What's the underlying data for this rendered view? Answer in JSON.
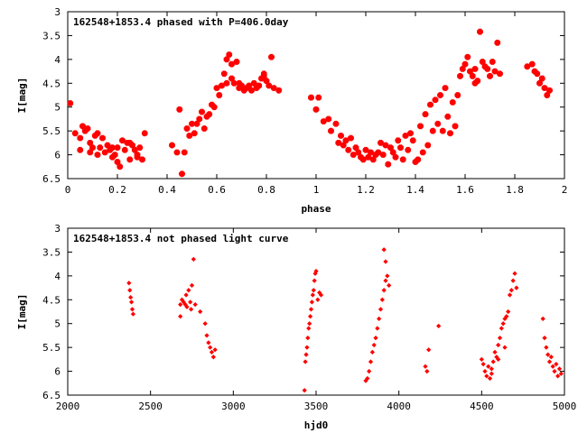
{
  "chart_data": [
    {
      "type": "scatter",
      "title": "162548+1853.4 phased with P=406.0day",
      "xlabel": "phase",
      "ylabel": "I[mag]",
      "xlim": [
        0,
        2
      ],
      "ylim": [
        6.5,
        3
      ],
      "y_inverted": true,
      "xticks": [
        "0",
        "0.2",
        "0.4",
        "0.6",
        "0.8",
        "1",
        "1.2",
        "1.4",
        "1.6",
        "1.8",
        "2"
      ],
      "yticks": [
        "3",
        "3.5",
        "4",
        "4.5",
        "5",
        "5.5",
        "6",
        "6.5"
      ],
      "marker_color": "#ff0000",
      "marker": "star",
      "series": [
        {
          "x": [
            0.01,
            0.03,
            0.05,
            0.06,
            0.07,
            0.08,
            0.09,
            0.1,
            0.11,
            0.12,
            0.13,
            0.14,
            0.15,
            0.16,
            0.17,
            0.18,
            0.19,
            0.2,
            0.21,
            0.22,
            0.23,
            0.24,
            0.25,
            0.26,
            0.27,
            0.28,
            0.29,
            0.3,
            0.31,
            0.05,
            0.12,
            0.2,
            0.25,
            0.09,
            0.18,
            0.28,
            0.42,
            0.44,
            0.45,
            0.46,
            0.47,
            0.48,
            0.49,
            0.5,
            0.51,
            0.52,
            0.53,
            0.54,
            0.55,
            0.56,
            0.57,
            0.58,
            0.59,
            0.6,
            0.61,
            0.62,
            0.63,
            0.64,
            0.65,
            0.66,
            0.67,
            0.68,
            0.69,
            0.7,
            0.71,
            0.72,
            0.73,
            0.74,
            0.75,
            0.76,
            0.77,
            0.78,
            0.79,
            0.8,
            0.81,
            0.82,
            0.83,
            0.85,
            0.64,
            0.66,
            0.69,
            0.79,
            0.98,
            1.0,
            1.01,
            1.03,
            1.05,
            1.06,
            1.08,
            1.09,
            1.1,
            1.11,
            1.12,
            1.13,
            1.14,
            1.15,
            1.16,
            1.17,
            1.18,
            1.19,
            1.2,
            1.21,
            1.22,
            1.23,
            1.24,
            1.25,
            1.26,
            1.27,
            1.28,
            1.29,
            1.3,
            1.31,
            1.32,
            1.33,
            1.34,
            1.35,
            1.36,
            1.37,
            1.38,
            1.39,
            1.4,
            1.41,
            1.42,
            1.43,
            1.44,
            1.45,
            1.46,
            1.47,
            1.48,
            1.49,
            1.5,
            1.51,
            1.52,
            1.53,
            1.54,
            1.55,
            1.56,
            1.57,
            1.58,
            1.59,
            1.6,
            1.61,
            1.62,
            1.63,
            1.64,
            1.65,
            1.66,
            1.67,
            1.68,
            1.69,
            1.7,
            1.71,
            1.72,
            1.73,
            1.74,
            1.64,
            1.85,
            1.87,
            1.88,
            1.89,
            1.9,
            1.91,
            1.92,
            1.93,
            1.94
          ],
          "y": [
            4.92,
            5.55,
            5.9,
            5.4,
            5.5,
            5.45,
            5.75,
            5.85,
            5.6,
            5.55,
            5.85,
            5.65,
            5.95,
            5.8,
            5.9,
            6.05,
            6.0,
            5.85,
            6.25,
            5.7,
            5.9,
            5.75,
            6.1,
            5.8,
            5.9,
            6.0,
            5.85,
            6.1,
            5.55,
            5.65,
            6.0,
            6.15,
            5.75,
            5.95,
            5.85,
            6.05,
            5.8,
            5.95,
            5.05,
            6.4,
            5.95,
            5.45,
            5.6,
            5.35,
            5.55,
            5.35,
            5.25,
            5.1,
            5.45,
            5.2,
            5.15,
            4.95,
            5.0,
            4.6,
            4.75,
            4.55,
            4.3,
            4.0,
            3.9,
            4.1,
            4.5,
            4.05,
            4.6,
            4.55,
            4.65,
            4.6,
            4.55,
            4.65,
            4.5,
            4.6,
            4.55,
            4.4,
            4.3,
            4.45,
            4.55,
            3.95,
            4.6,
            4.65,
            4.5,
            4.4,
            4.5,
            4.35,
            4.8,
            5.05,
            4.8,
            5.3,
            5.25,
            5.5,
            5.35,
            5.75,
            5.6,
            5.8,
            5.7,
            5.9,
            5.65,
            6.0,
            5.85,
            5.95,
            6.05,
            6.1,
            5.9,
            6.05,
            5.95,
            6.1,
            6.0,
            5.95,
            5.75,
            6.0,
            5.8,
            6.2,
            5.85,
            5.95,
            6.05,
            5.7,
            5.85,
            6.1,
            5.6,
            5.9,
            5.55,
            5.7,
            6.15,
            6.1,
            5.4,
            5.95,
            5.15,
            5.8,
            4.95,
            5.5,
            4.85,
            5.35,
            4.75,
            5.5,
            4.6,
            5.2,
            5.55,
            4.9,
            5.4,
            4.75,
            4.35,
            4.2,
            4.1,
            3.95,
            4.25,
            4.35,
            4.5,
            4.45,
            3.42,
            4.05,
            4.15,
            4.2,
            4.35,
            4.05,
            4.25,
            3.65,
            4.3,
            4.2,
            4.15,
            4.1,
            4.25,
            4.3,
            4.5,
            4.4,
            4.6,
            4.75,
            4.65
          ]
        }
      ]
    },
    {
      "type": "scatter",
      "title": "162548+1853.4 not phased light curve",
      "xlabel": "hjd0",
      "ylabel": "I[mag]",
      "xlim": [
        2000,
        5000
      ],
      "ylim": [
        6.5,
        3
      ],
      "y_inverted": true,
      "xticks": [
        "2000",
        "2500",
        "3000",
        "3500",
        "4000",
        "4500",
        "5000"
      ],
      "yticks": [
        "3",
        "3.5",
        "4",
        "4.5",
        "5",
        "5.5",
        "6",
        "6.5"
      ],
      "marker_color": "#ff0000",
      "marker": "diamond",
      "series": [
        {
          "x": [
            2370,
            2375,
            2380,
            2385,
            2390,
            2395,
            2680,
            2690,
            2700,
            2710,
            2715,
            2720,
            2730,
            2740,
            2745,
            2750,
            2760,
            2770,
            2680,
            2800,
            2830,
            2840,
            2850,
            2860,
            2870,
            2880,
            2890,
            3430,
            3435,
            3440,
            3445,
            3450,
            3455,
            3460,
            3465,
            3470,
            3475,
            3480,
            3485,
            3490,
            3495,
            3500,
            3510,
            3520,
            3530,
            3800,
            3810,
            3820,
            3830,
            3840,
            3850,
            3860,
            3870,
            3880,
            3890,
            3900,
            3910,
            3920,
            3930,
            3940,
            3910,
            3920,
            4160,
            4170,
            4180,
            4240,
            4500,
            4510,
            4520,
            4530,
            4540,
            4550,
            4560,
            4570,
            4580,
            4590,
            4600,
            4610,
            4620,
            4630,
            4640,
            4650,
            4660,
            4670,
            4680,
            4690,
            4700,
            4710,
            4560,
            4600,
            4640,
            4870,
            4880,
            4890,
            4900,
            4910,
            4920,
            4930,
            4940,
            4950,
            4960,
            4970,
            4980
          ],
          "y": [
            4.15,
            4.3,
            4.45,
            4.55,
            4.7,
            4.8,
            4.6,
            4.5,
            4.55,
            4.6,
            4.4,
            4.65,
            4.3,
            4.55,
            4.7,
            4.2,
            3.65,
            4.6,
            4.85,
            4.75,
            5.0,
            5.25,
            5.4,
            5.5,
            5.6,
            5.7,
            5.55,
            6.4,
            5.8,
            5.65,
            5.5,
            5.3,
            5.1,
            5.0,
            4.85,
            4.7,
            4.55,
            4.4,
            4.3,
            4.1,
            3.95,
            3.9,
            4.5,
            4.35,
            4.4,
            6.2,
            6.15,
            6.0,
            5.8,
            5.6,
            5.45,
            5.3,
            5.1,
            4.9,
            4.7,
            4.5,
            4.3,
            4.1,
            4.0,
            4.2,
            3.45,
            3.7,
            5.9,
            6.0,
            5.55,
            5.05,
            5.75,
            5.85,
            6.0,
            6.1,
            5.9,
            6.15,
            6.05,
            5.8,
            5.6,
            5.7,
            5.45,
            5.3,
            5.1,
            5.0,
            4.9,
            4.85,
            4.75,
            4.4,
            4.3,
            4.1,
            3.95,
            4.25,
            5.95,
            5.75,
            5.5,
            4.9,
            5.3,
            5.5,
            5.65,
            5.8,
            5.7,
            5.9,
            6.0,
            5.85,
            6.1,
            5.95,
            6.05
          ]
        }
      ]
    }
  ]
}
